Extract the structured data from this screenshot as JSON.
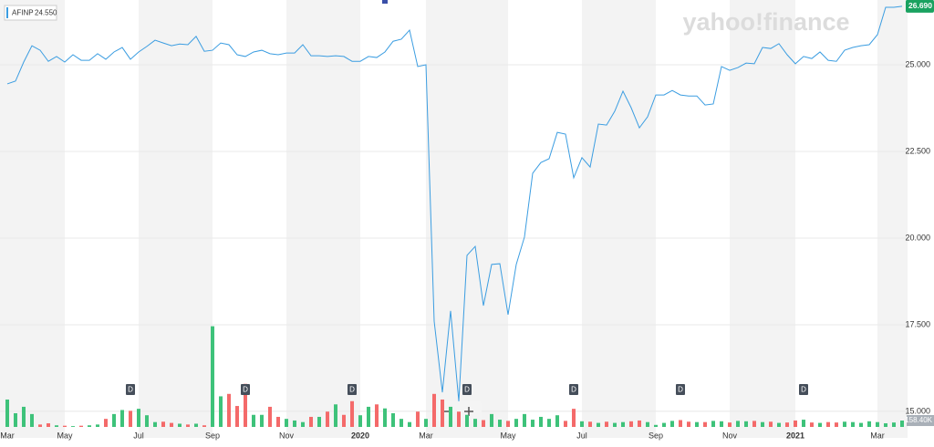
{
  "chart_data": {
    "type": "line",
    "ticker": "AFINP",
    "hover_value": "24.550",
    "watermark": "yahoo!finance",
    "categories": [
      "Mar",
      null,
      null,
      null,
      null,
      null,
      null,
      "May",
      null,
      null,
      null,
      null,
      null,
      null,
      null,
      null,
      "Jul",
      null,
      null,
      null,
      null,
      null,
      null,
      null,
      null,
      "Sep",
      null,
      null,
      null,
      null,
      null,
      null,
      null,
      null,
      "Nov",
      null,
      null,
      null,
      null,
      null,
      null,
      null,
      null,
      "2020",
      null,
      null,
      null,
      null,
      null,
      null,
      null,
      "Mar",
      null,
      null,
      null,
      null,
      null,
      null,
      null,
      null,
      null,
      "May",
      null,
      null,
      null,
      null,
      null,
      null,
      null,
      null,
      "Jul",
      null,
      null,
      null,
      null,
      null,
      null,
      null,
      null,
      "Sep",
      null,
      null,
      null,
      null,
      null,
      null,
      null,
      null,
      "Nov",
      null,
      null,
      null,
      null,
      null,
      null,
      null,
      "2021",
      null,
      null,
      null,
      null,
      null,
      null,
      null,
      null,
      null,
      "Mar",
      null,
      null,
      null
    ],
    "series": [
      {
        "name": "AFINP",
        "color": "#3b9de1",
        "values": [
          24.45,
          24.53,
          25.08,
          25.55,
          25.42,
          25.1,
          25.24,
          25.08,
          25.29,
          25.13,
          25.13,
          25.32,
          25.16,
          25.37,
          25.5,
          25.16,
          25.37,
          25.53,
          25.71,
          25.63,
          25.55,
          25.6,
          25.58,
          25.82,
          25.39,
          25.42,
          25.63,
          25.58,
          25.29,
          25.24,
          25.37,
          25.42,
          25.32,
          25.29,
          25.34,
          25.34,
          25.58,
          25.26,
          25.26,
          25.24,
          25.26,
          25.24,
          25.1,
          25.1,
          25.24,
          25.21,
          25.37,
          25.68,
          25.74,
          26.0,
          24.95,
          25.0,
          17.6,
          15.55,
          17.9,
          15.29,
          19.5,
          19.76,
          18.05,
          19.24,
          19.26,
          17.79,
          19.24,
          20.03,
          21.87,
          22.18,
          22.29,
          23.05,
          23.0,
          21.74,
          22.32,
          22.05,
          23.29,
          23.26,
          23.66,
          24.24,
          23.76,
          23.18,
          23.5,
          24.13,
          24.13,
          24.26,
          24.13,
          24.1,
          24.1,
          23.84,
          23.87,
          24.95,
          24.84,
          24.92,
          25.05,
          25.03,
          25.5,
          25.47,
          25.61,
          25.29,
          25.03,
          25.24,
          25.18,
          25.37,
          25.13,
          25.1,
          25.42,
          25.5,
          25.55,
          25.58,
          25.87,
          26.66,
          26.66,
          26.69
        ]
      }
    ],
    "volume": {
      "up_color": "#3ec27a",
      "down_color": "#f46a6a",
      "values": [
        680000,
        340000,
        500000,
        320000,
        60000,
        90000,
        40000,
        30000,
        20000,
        30000,
        40000,
        60000,
        200000,
        320000,
        420000,
        400000,
        450000,
        290000,
        120000,
        130000,
        100000,
        80000,
        60000,
        80000,
        40000,
        2500000,
        760000,
        820000,
        520000,
        1070000,
        300000,
        300000,
        500000,
        250000,
        200000,
        160000,
        120000,
        250000,
        250000,
        380000,
        560000,
        300000,
        640000,
        290000,
        500000,
        560000,
        460000,
        340000,
        200000,
        120000,
        380000,
        200000,
        820000,
        680000,
        500000,
        380000,
        300000,
        200000,
        170000,
        320000,
        180000,
        150000,
        200000,
        320000,
        180000,
        250000,
        200000,
        290000,
        150000,
        450000,
        140000,
        130000,
        100000,
        130000,
        100000,
        120000,
        140000,
        160000,
        120000,
        50000,
        100000,
        150000,
        170000,
        130000,
        120000,
        120000,
        150000,
        140000,
        110000,
        150000,
        140000,
        150000,
        120000,
        130000,
        100000,
        110000,
        160000,
        180000,
        110000,
        100000,
        120000,
        110000,
        130000,
        120000,
        100000,
        140000,
        120000,
        90000,
        110000,
        158400
      ],
      "ylim": [
        0,
        10600000
      ],
      "ticks": [
        {
          "value": 158400,
          "label": "158.40K"
        }
      ]
    },
    "dividends": {
      "label": "D",
      "at": [
        15,
        29,
        42,
        56,
        69,
        82,
        97
      ]
    },
    "last_price": {
      "value": 26.69,
      "label": "26.690"
    },
    "ylim": [
      14.55,
      26.87
    ],
    "yticks": [
      {
        "value": 15,
        "label": "15.000"
      },
      {
        "value": 17.5,
        "label": "17.500"
      },
      {
        "value": 20,
        "label": "20.000"
      },
      {
        "value": 22.5,
        "label": "22.500"
      },
      {
        "value": 25,
        "label": "25.000"
      }
    ],
    "grid": true
  }
}
